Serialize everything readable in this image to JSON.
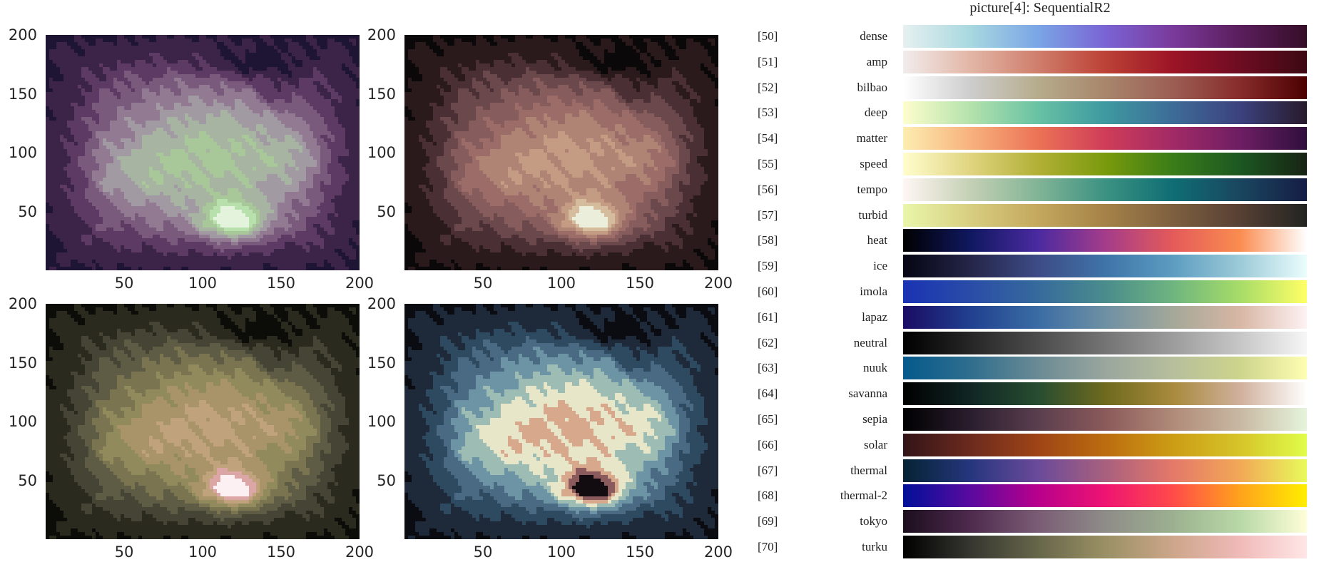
{
  "title": "picture[4]:  SequentialR2",
  "chart_data": [
    {
      "type": "heatmap",
      "title": "",
      "xlim": [
        0,
        200
      ],
      "ylim": [
        0,
        200
      ],
      "xticks": [
        "50",
        "100",
        "150",
        "200"
      ],
      "yticks": [
        "200",
        "150",
        "100",
        "50"
      ],
      "colormap": "dense",
      "colors": [
        "#1e1434",
        "#3b2448",
        "#5c3a64",
        "#7a5a7c",
        "#927a92",
        "#a29aa2",
        "#a8b4a2",
        "#a8c89a",
        "#b8e0ac",
        "#e4f4dc"
      ]
    },
    {
      "type": "heatmap",
      "title": "",
      "xlim": [
        0,
        200
      ],
      "ylim": [
        0,
        200
      ],
      "xticks": [
        "50",
        "100",
        "150",
        "200"
      ],
      "yticks": [
        "200",
        "150",
        "100",
        "50"
      ],
      "colormap": "pink-like",
      "colors": [
        "#0a0808",
        "#2a1a1c",
        "#4a3034",
        "#6a484c",
        "#865c5c",
        "#9c6c68",
        "#b08474",
        "#c49c84",
        "#d4bc9c",
        "#eceedc"
      ]
    },
    {
      "type": "heatmap",
      "title": "",
      "xlim": [
        0,
        200
      ],
      "ylim": [
        0,
        200
      ],
      "xticks": [
        "50",
        "100",
        "150",
        "200"
      ],
      "yticks": [
        "200",
        "150",
        "100",
        "50"
      ],
      "colormap": "olive-pink",
      "colors": [
        "#0c0c08",
        "#2a2a1e",
        "#464434",
        "#5e5c44",
        "#7a7550",
        "#918a5c",
        "#a89468",
        "#c0a27c",
        "#dca6a6",
        "#fcf0f2"
      ]
    },
    {
      "type": "heatmap",
      "title": "",
      "xlim": [
        0,
        200
      ],
      "ylim": [
        0,
        200
      ],
      "xticks": [
        "50",
        "100",
        "150",
        "200"
      ],
      "yticks": [
        "200",
        "150",
        "100",
        "50"
      ],
      "colormap": "teal-cream",
      "colors": [
        "#0a0c12",
        "#1e2a3a",
        "#2e4a60",
        "#4a6a84",
        "#6c94a4",
        "#9cbcb4",
        "#e8e6c8",
        "#d8a88c",
        "#8a5a5c",
        "#120c10"
      ]
    }
  ],
  "colormaps": [
    {
      "index": "[50]",
      "name": "dense",
      "stops": [
        "#e6f0f0",
        "#a8d8e0",
        "#7aa6e6",
        "#7a64d4",
        "#7a3a9c",
        "#5a1e5c",
        "#360d28"
      ]
    },
    {
      "index": "[51]",
      "name": "amp",
      "stops": [
        "#f1ecec",
        "#e2b6a6",
        "#d07e6c",
        "#bc4236",
        "#9c1426",
        "#6e0c22",
        "#3c0912"
      ]
    },
    {
      "index": "[52]",
      "name": "bilbao",
      "stops": [
        "#ffffff",
        "#cdcdcd",
        "#b6ac8c",
        "#a8866c",
        "#9c5e54",
        "#882c2c",
        "#4c0000"
      ]
    },
    {
      "index": "[53]",
      "name": "deep",
      "stops": [
        "#fdfecc",
        "#b4e2ac",
        "#68c2a4",
        "#3e99a0",
        "#3e6c98",
        "#3c427e",
        "#281a2c"
      ]
    },
    {
      "index": "[54]",
      "name": "matter",
      "stops": [
        "#fdedb0",
        "#f7b27e",
        "#ec7356",
        "#cf3d58",
        "#a22a66",
        "#6e1e64",
        "#2f0f3d"
      ]
    },
    {
      "index": "[55]",
      "name": "speed",
      "stops": [
        "#fffdcd",
        "#e0d480",
        "#b2b036",
        "#7a9a0c",
        "#3a7d18",
        "#1c5822",
        "#172313"
      ]
    },
    {
      "index": "[56]",
      "name": "tempo",
      "stops": [
        "#fff6f4",
        "#c4d0b4",
        "#82b496",
        "#3c9282",
        "#0f6e74",
        "#1a4660",
        "#151d44"
      ]
    },
    {
      "index": "[57]",
      "name": "turbid",
      "stops": [
        "#e9f6ab",
        "#d8ce80",
        "#c4a85e",
        "#a58248",
        "#7e6040",
        "#574034",
        "#222421"
      ]
    },
    {
      "index": "[58]",
      "name": "heat",
      "stops": [
        "#000000",
        "#101860",
        "#4a2aa0",
        "#a43c8a",
        "#e45a5a",
        "#fa8c50",
        "#ffffff"
      ]
    },
    {
      "index": "[59]",
      "name": "ice",
      "stops": [
        "#040613",
        "#252548",
        "#3d4b86",
        "#3e74a8",
        "#5c9cc0",
        "#9ccad8",
        "#eafdfd"
      ]
    },
    {
      "index": "[60]",
      "name": "imola",
      "stops": [
        "#1a33b3",
        "#2a4ca8",
        "#366a9c",
        "#4a8c8c",
        "#6eb480",
        "#a6dc68",
        "#ffff66"
      ]
    },
    {
      "index": "[61]",
      "name": "lapaz",
      "stops": [
        "#1a0c64",
        "#214090",
        "#3a6ca4",
        "#6e90a4",
        "#a4a898",
        "#d8b6a4",
        "#fef2f3"
      ]
    },
    {
      "index": "[62]",
      "name": "neutral",
      "stops": [
        "#000000",
        "#262626",
        "#4c4c4c",
        "#747474",
        "#9c9c9c",
        "#c6c6c6",
        "#f6f6f6"
      ]
    },
    {
      "index": "[63]",
      "name": "nuuk",
      "stops": [
        "#05598c",
        "#2f6e8e",
        "#6a8a94",
        "#9aa69e",
        "#b6be9c",
        "#cdd48c",
        "#fefeb2"
      ]
    },
    {
      "index": "[64]",
      "name": "savanna",
      "stops": [
        "#000000",
        "#102624",
        "#274c30",
        "#6e6a1e",
        "#a88a3c",
        "#d0b09c",
        "#ffffff"
      ]
    },
    {
      "index": "[65]",
      "name": "sepia",
      "stops": [
        "#000000",
        "#2a1e2e",
        "#5a3e4e",
        "#8a5a5a",
        "#b08a78",
        "#c8b8a2",
        "#e6f4dc"
      ]
    },
    {
      "index": "[66]",
      "name": "solar",
      "stops": [
        "#331418",
        "#6c2a1e",
        "#9e4416",
        "#bc6c10",
        "#cc9c14",
        "#d6c42a",
        "#e0fd4a"
      ]
    },
    {
      "index": "[67]",
      "name": "thermal",
      "stops": [
        "#042333",
        "#26367e",
        "#6a4a9a",
        "#a8607e",
        "#e4786a",
        "#f2a856",
        "#e8fa5b"
      ]
    },
    {
      "index": "[68]",
      "name": "thermal-2",
      "stops": [
        "#001099",
        "#5a0aa0",
        "#b8008c",
        "#ee1472",
        "#ff4a4a",
        "#ffa21c",
        "#ffee00"
      ]
    },
    {
      "index": "[69]",
      "name": "tokyo",
      "stops": [
        "#1c0e1e",
        "#4e2a4e",
        "#7a5c74",
        "#8e8c88",
        "#9cb090",
        "#b8d8a6",
        "#fefed8"
      ]
    },
    {
      "index": "[70]",
      "name": "turku",
      "stops": [
        "#000000",
        "#363630",
        "#66664a",
        "#9a9064",
        "#cca68a",
        "#f0bab8",
        "#ffe6e6"
      ]
    }
  ]
}
